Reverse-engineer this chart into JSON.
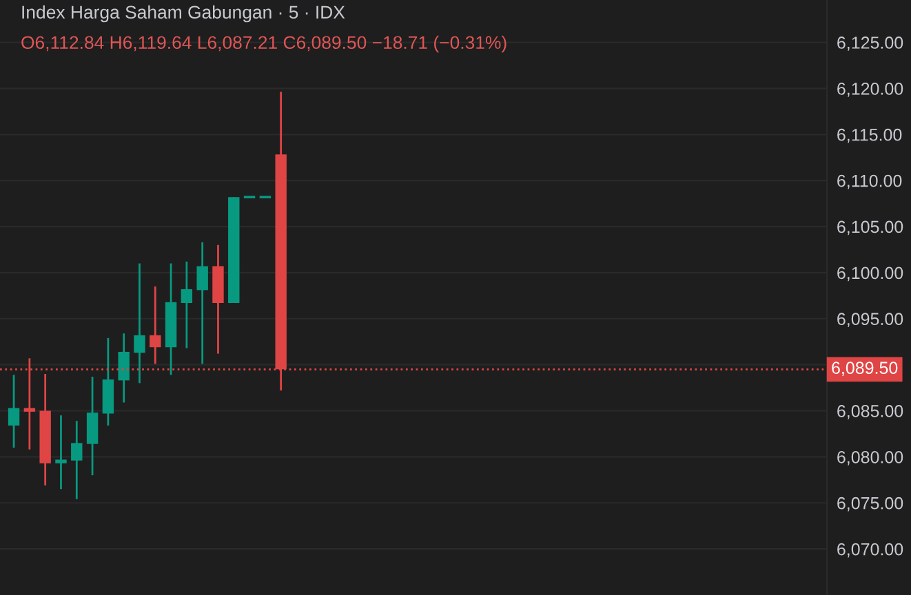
{
  "chart_data": {
    "type": "candlestick",
    "title": "Index Harga Saham Gabungan · 5 · IDX",
    "subtitle": "O6,112.84 H6,119.64 L6,087.21 C6,089.50 −18.71 (−0.31%)",
    "categories": [
      null,
      null,
      null,
      null,
      null,
      null,
      null,
      null,
      null,
      null,
      null,
      null,
      null,
      null,
      null,
      null,
      null,
      null,
      null,
      null,
      null,
      null,
      null,
      null,
      null,
      null,
      null,
      null,
      null,
      null,
      null,
      null,
      null,
      null,
      null,
      null,
      null,
      null,
      null,
      null,
      null,
      null,
      null,
      null,
      null,
      null,
      null,
      null,
      null,
      null,
      null,
      null
    ],
    "ohlc": [
      [
        6083.4,
        6088.9,
        6081.0,
        6085.3
      ],
      [
        6085.3,
        6090.7,
        6080.8,
        6084.9
      ],
      [
        6085.0,
        6089.0,
        6076.9,
        6079.3
      ],
      [
        6079.3,
        6084.5,
        6076.5,
        6079.7
      ],
      [
        6079.6,
        6083.9,
        6075.4,
        6081.5
      ],
      [
        6081.4,
        6088.7,
        6078.0,
        6084.8
      ],
      [
        6084.7,
        6092.9,
        6083.4,
        6088.4
      ],
      [
        6088.3,
        6093.4,
        6085.9,
        6091.4
      ],
      [
        6091.3,
        6101.0,
        6088.0,
        6093.2
      ],
      [
        6093.2,
        6098.5,
        6090.1,
        6091.9
      ],
      [
        6091.9,
        6101.0,
        6088.9,
        6096.8
      ],
      [
        6096.7,
        6101.2,
        6091.8,
        6098.2
      ],
      [
        6098.1,
        6103.3,
        6090.1,
        6100.7
      ],
      [
        6100.7,
        6103.0,
        6091.2,
        6096.7
      ],
      [
        6096.7,
        6108.2,
        6096.7,
        6108.2
      ],
      [
        6108.2,
        6108.2,
        6108.2,
        6108.2
      ],
      [
        6108.2,
        6108.2,
        6108.2,
        6108.2
      ],
      [
        6112.84,
        6119.64,
        6087.21,
        6089.5
      ],
      null,
      null,
      null,
      null,
      null,
      null,
      null,
      null,
      null,
      null,
      null,
      null,
      null,
      null,
      null,
      null,
      null,
      null,
      null,
      null,
      null,
      null,
      null,
      null,
      null,
      null,
      null,
      null,
      null,
      null,
      null,
      null,
      null,
      null
    ],
    "colors": [
      "#089981",
      "#e04545",
      "#e04545",
      "#089981",
      "#089981",
      "#089981",
      "#089981",
      "#089981",
      "#089981",
      "#e04545",
      "#089981",
      "#089981",
      "#089981",
      "#e04545",
      "#089981",
      "#089981",
      "#089981",
      "#e04545",
      null,
      null,
      null,
      null,
      null,
      null,
      null,
      null,
      null,
      null,
      null,
      null,
      null,
      null,
      null,
      null,
      null,
      null,
      null,
      null,
      null,
      null,
      null,
      null,
      null,
      null,
      null,
      null,
      null,
      null,
      null,
      null,
      null,
      null
    ],
    "ylim": [
      6065,
      6129.6
    ],
    "yticks": [
      {
        "value": 6070,
        "label": "6,070.00"
      },
      {
        "value": 6075,
        "label": "6,075.00"
      },
      {
        "value": 6080,
        "label": "6,080.00"
      },
      {
        "value": 6085,
        "label": "6,085.00"
      },
      {
        "value": 6090,
        "label": null
      },
      {
        "value": 6095,
        "label": "6,095.00"
      },
      {
        "value": 6100,
        "label": "6,100.00"
      },
      {
        "value": 6105,
        "label": "6,105.00"
      },
      {
        "value": 6110,
        "label": "6,110.00"
      },
      {
        "value": 6115,
        "label": "6,115.00"
      },
      {
        "value": 6120,
        "label": "6,120.00"
      },
      {
        "value": 6125,
        "label": "6,125.00"
      }
    ],
    "ref_lines": [
      {
        "axis": "y",
        "value": 6089.5,
        "label": "6,089.50",
        "color": "#e04545",
        "line_style": "dotted"
      }
    ],
    "tick_labels": "y",
    "grid": "y"
  }
}
